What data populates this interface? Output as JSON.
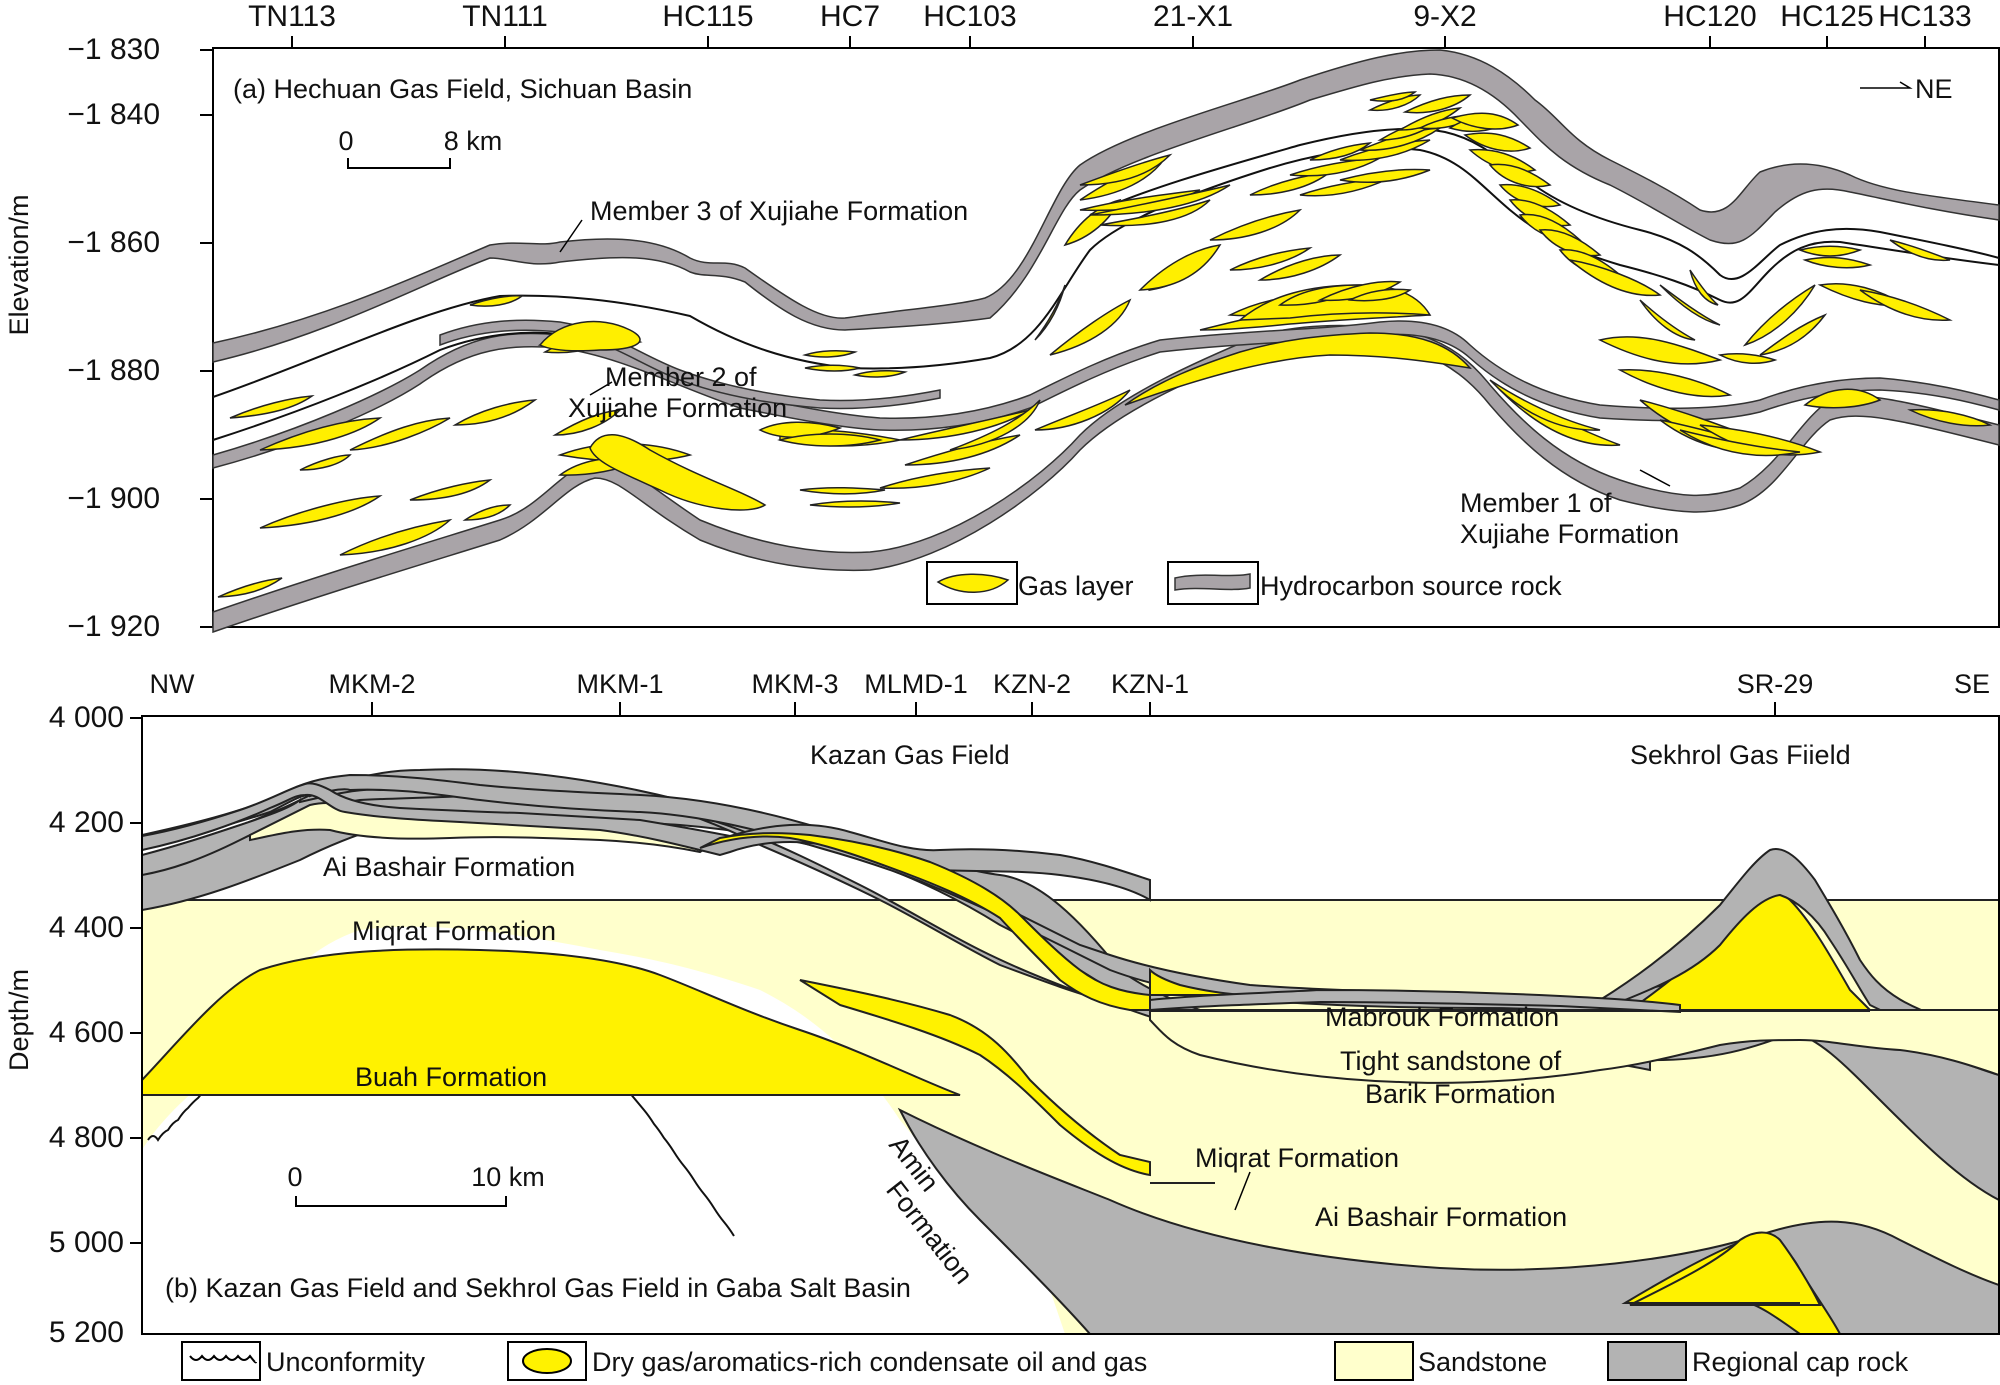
{
  "top": {
    "wells": [
      "TN113",
      "TN111",
      "HC115",
      "HC7",
      "HC103",
      "21-X1",
      "9-X2",
      "HC120",
      "HC125",
      "HC133"
    ],
    "y_axis_label": "Elevation/m",
    "y_ticks": [
      "−1 830",
      "−1 840",
      "−1 860",
      "−1 880",
      "−1 900",
      "−1 920"
    ],
    "title": "(a) Hechuan Gas Field, Sichuan Basin",
    "scale": {
      "start": "0",
      "end": "8 km"
    },
    "direction": "NE",
    "labels": {
      "member3": "Member 3 of Xujiahe Formation",
      "member2_line1": "Member 2 of",
      "member2_line2": "Xujiahe Formation",
      "member1_line1": "Member 1 of",
      "member1_line2": "Xujiahe Formation"
    },
    "legend": {
      "gas_layer": "Gas layer",
      "source_rock": "Hydrocarbon source rock"
    }
  },
  "bottom": {
    "wells": [
      "NW",
      "MKM-2",
      "MKM-1",
      "MKM-3",
      "MLMD-1",
      "KZN-2",
      "KZN-1",
      "SR-29",
      "SE"
    ],
    "y_axis_label": "Depth/m",
    "y_ticks": [
      "4 000",
      "4 200",
      "4 400",
      "4 600",
      "4 800",
      "5 000",
      "5 200"
    ],
    "field_labels": {
      "kazan": "Kazan Gas Field",
      "sekhrol": "Sekhrol Gas Fiield"
    },
    "title": "(b) Kazan Gas Field and Sekhrol Gas Field in Gaba Salt Basin",
    "scale": {
      "start": "0",
      "end": "10 km"
    },
    "formations": {
      "ai_bashair_top": "Ai Bashair Formation",
      "miqrat_top": "Miqrat Formation",
      "buah": "Buah Formation",
      "amin_line1": "Amin",
      "amin_line2": "Formation",
      "mabrouk": "Mabrouk Formation",
      "barik_line1": "Tight sandstone of",
      "barik_line2": "Barik Formation",
      "miqrat_bottom": "Miqrat Formation",
      "ai_bashair_bottom": "Ai Bashair Formation"
    },
    "legend": {
      "unconformity": "Unconformity",
      "dry_gas": "Dry gas/aromatics-rich condensate oil and gas",
      "sandstone": "Sandstone",
      "cap_rock": "Regional cap rock"
    }
  }
}
